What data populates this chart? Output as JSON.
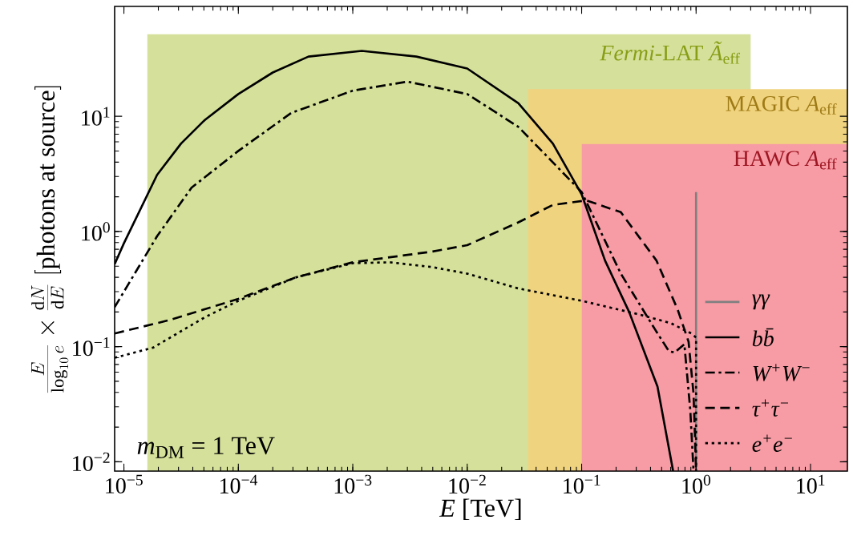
{
  "chart_data": {
    "type": "line",
    "xlabel": "*E* [TeV]",
    "ylabel": "\\frac{E}{\\log_{10} e}\\times\\frac{\\mathrm{d}N}{\\mathrm{d}E}\\;[\\mathrm{photons\\ at\\ source}]",
    "log": "xy",
    "xlim": [
      8.3e-06,
      21
    ],
    "ylim": [
      0.0083,
      90
    ],
    "xticks": [
      {
        "value": 1e-05,
        "label": "10$^{−5}$"
      },
      {
        "value": 0.0001,
        "label": "10$^{−4}$"
      },
      {
        "value": 0.001,
        "label": "10$^{−3}$"
      },
      {
        "value": 0.01,
        "label": "10$^{−2}$"
      },
      {
        "value": 0.1,
        "label": "10$^{−1}$"
      },
      {
        "value": 1,
        "label": "10$^{0}$"
      },
      {
        "value": 10,
        "label": "10$^{1}$"
      }
    ],
    "yticks": [
      {
        "value": 0.01,
        "label": "10$^{−2}$"
      },
      {
        "value": 0.1,
        "label": "10$^{−1}$"
      },
      {
        "value": 1,
        "label": "10$^{0}$"
      },
      {
        "value": 10,
        "label": "10$^{1}$"
      }
    ],
    "legend": "bottom right",
    "annotations": [
      "*m*$_{DM}$ = 1 TeV"
    ],
    "bands": [
      {
        "axis": "x",
        "from": 1.6e-05,
        "to": 3,
        "label": "*Fermi*-LAT *Ã*$_{eff}$",
        "color": "#d5e09a"
      },
      {
        "axis": "x",
        "from": 0.034,
        "to": 21,
        "label": "MAGIC *A*$_{eff}$",
        "color": "#f0d37e"
      },
      {
        "axis": "x",
        "from": 0.1,
        "to": 21,
        "label": "HAWC *A*$_{eff}$",
        "color": "#f79ba4"
      }
    ],
    "series": [
      {
        "name": "γγ",
        "color": "#808080",
        "line_style": "solid",
        "x": [
          1,
          1
        ],
        "values": [
          0.0083,
          2.2
        ]
      },
      {
        "name": "bb̄",
        "color": "#000000",
        "line_style": "solid",
        "x": [
          8.3e-06,
          1e-05,
          1.95e-05,
          3.16e-05,
          5.1e-05,
          0.0001,
          0.0002,
          0.00041,
          0.0012,
          0.0036,
          0.01,
          0.028,
          0.056,
          0.1,
          0.16,
          0.26,
          0.46,
          0.63
        ],
        "values": [
          0.52,
          0.79,
          3.1,
          5.8,
          9.3,
          15.6,
          24,
          33,
          37,
          33,
          26,
          13,
          5.8,
          2.1,
          0.56,
          0.2,
          0.045,
          0.0083
        ]
      },
      {
        "name": "W$^{+}$W$^{−}$",
        "color": "#000000",
        "line_style": "dashdot",
        "x": [
          8.3e-06,
          1e-05,
          1.95e-05,
          3.9e-05,
          0.0001,
          0.00029,
          0.001,
          0.003,
          0.01,
          0.028,
          0.1,
          0.22,
          0.44,
          0.58,
          0.65,
          0.79,
          0.89,
          0.95
        ],
        "values": [
          0.22,
          0.3,
          0.91,
          2.4,
          5.0,
          10.7,
          16.7,
          20,
          15.6,
          8.1,
          2.2,
          0.43,
          0.14,
          0.091,
          0.089,
          0.105,
          0.028,
          0.0083
        ]
      },
      {
        "name": "τ$^{+}$τ$^{−}$",
        "color": "#000000",
        "line_style": "dashed",
        "x": [
          8.3e-06,
          2.5e-05,
          0.0001,
          0.00032,
          0.001,
          0.005,
          0.01,
          0.028,
          0.056,
          0.11,
          0.22,
          0.45,
          0.69,
          0.86,
          0.95,
          1
        ],
        "values": [
          0.13,
          0.17,
          0.26,
          0.4,
          0.54,
          0.67,
          0.76,
          1.2,
          1.7,
          1.86,
          1.47,
          0.56,
          0.21,
          0.11,
          0.039,
          0.0083
        ]
      },
      {
        "name": "e$^{+}$e$^{−}$",
        "color": "#000000",
        "line_style": "dotted",
        "x": [
          8.3e-06,
          1.8e-05,
          5.1e-05,
          0.0001,
          0.00032,
          0.001,
          0.0021,
          0.005,
          0.01,
          0.028,
          0.1,
          0.32,
          0.6,
          0.91,
          1,
          1
        ],
        "values": [
          0.08,
          0.098,
          0.18,
          0.25,
          0.4,
          0.53,
          0.54,
          0.49,
          0.43,
          0.32,
          0.25,
          0.19,
          0.16,
          0.13,
          0.12,
          0.0083
        ]
      }
    ]
  }
}
